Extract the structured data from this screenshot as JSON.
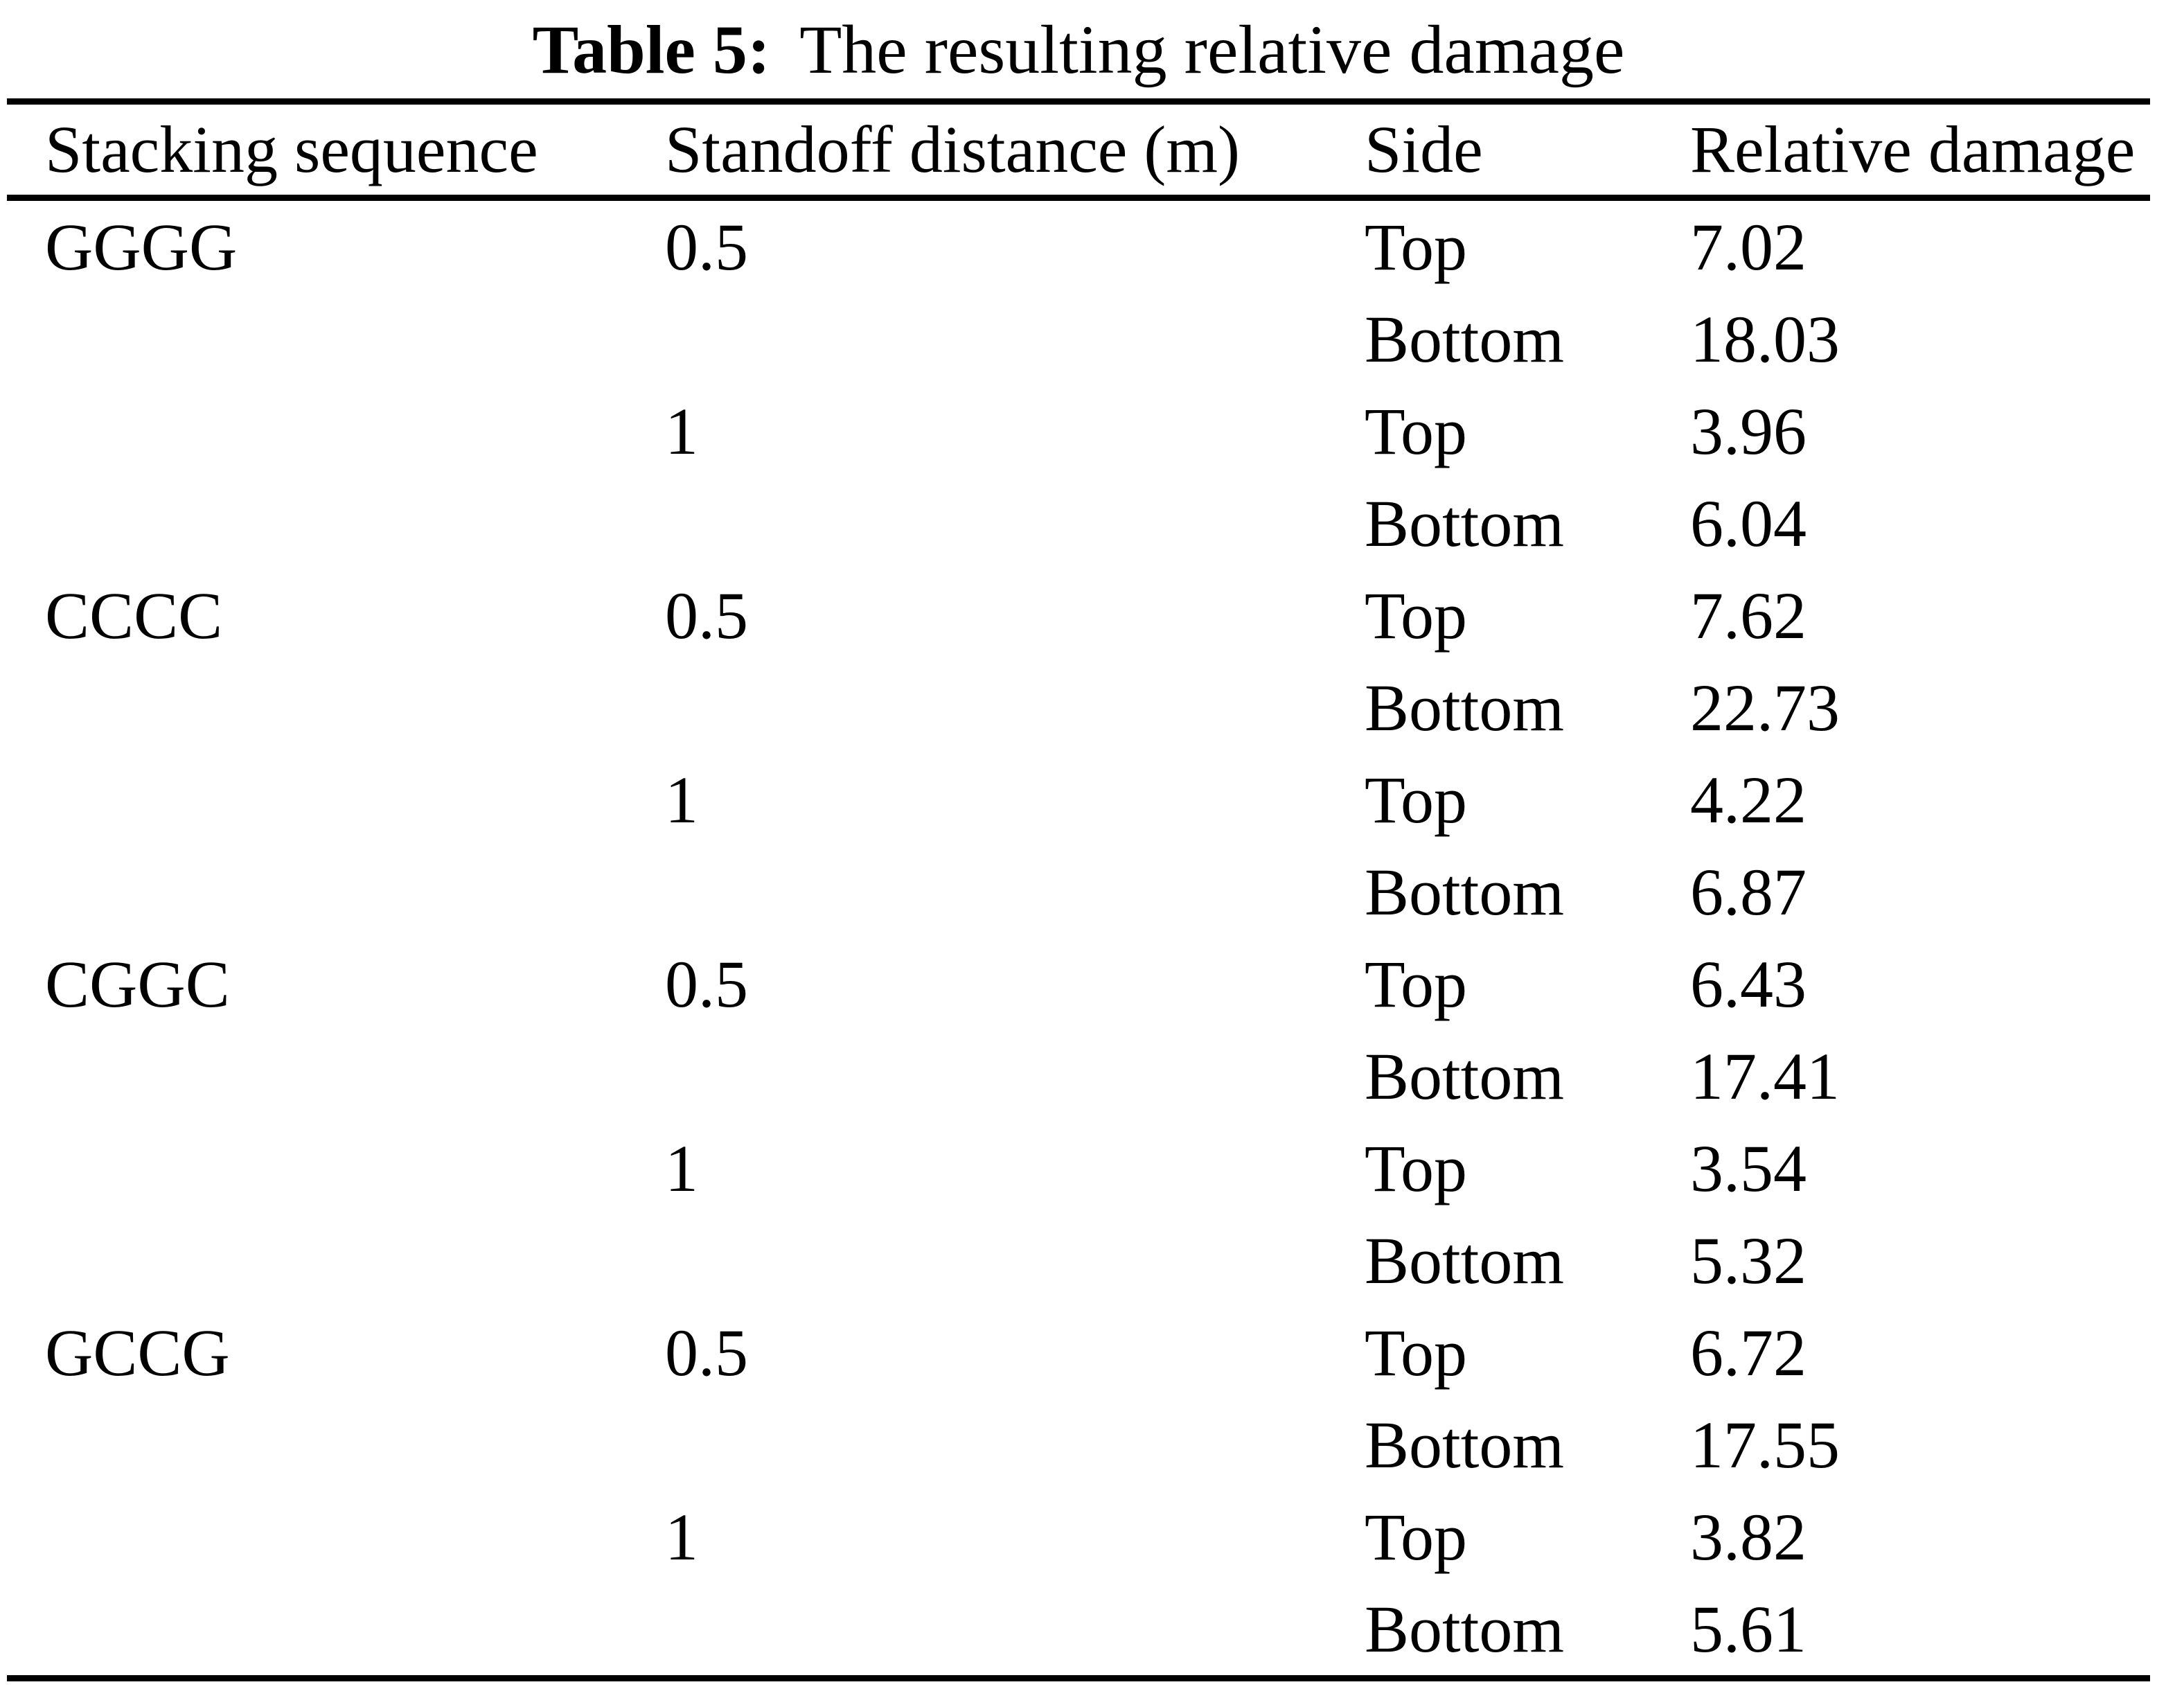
{
  "table": {
    "caption_label": "Table 5:",
    "caption_text": "The resulting relative damage",
    "columns": {
      "stacking": "Stacking sequence",
      "standoff": "Standoff distance (m)",
      "side": "Side",
      "damage": "Relative damage"
    },
    "rows": [
      {
        "stacking": "GGGG",
        "standoff": "0.5",
        "side": "Top",
        "damage": "7.02"
      },
      {
        "stacking": "",
        "standoff": "",
        "side": "Bottom",
        "damage": "18.03"
      },
      {
        "stacking": "",
        "standoff": "1",
        "side": "Top",
        "damage": "3.96"
      },
      {
        "stacking": "",
        "standoff": "",
        "side": "Bottom",
        "damage": "6.04"
      },
      {
        "stacking": "CCCC",
        "standoff": "0.5",
        "side": "Top",
        "damage": "7.62"
      },
      {
        "stacking": "",
        "standoff": "",
        "side": "Bottom",
        "damage": "22.73"
      },
      {
        "stacking": "",
        "standoff": "1",
        "side": "Top",
        "damage": "4.22"
      },
      {
        "stacking": "",
        "standoff": "",
        "side": "Bottom",
        "damage": "6.87"
      },
      {
        "stacking": "CGGC",
        "standoff": "0.5",
        "side": "Top",
        "damage": "6.43"
      },
      {
        "stacking": "",
        "standoff": "",
        "side": "Bottom",
        "damage": "17.41"
      },
      {
        "stacking": "",
        "standoff": "1",
        "side": "Top",
        "damage": "3.54"
      },
      {
        "stacking": "",
        "standoff": "",
        "side": "Bottom",
        "damage": "5.32"
      },
      {
        "stacking": "GCCG",
        "standoff": "0.5",
        "side": "Top",
        "damage": "6.72"
      },
      {
        "stacking": "",
        "standoff": "",
        "side": "Bottom",
        "damage": "17.55"
      },
      {
        "stacking": "",
        "standoff": "1",
        "side": "Top",
        "damage": "3.82"
      },
      {
        "stacking": "",
        "standoff": "",
        "side": "Bottom",
        "damage": "5.61"
      }
    ]
  }
}
